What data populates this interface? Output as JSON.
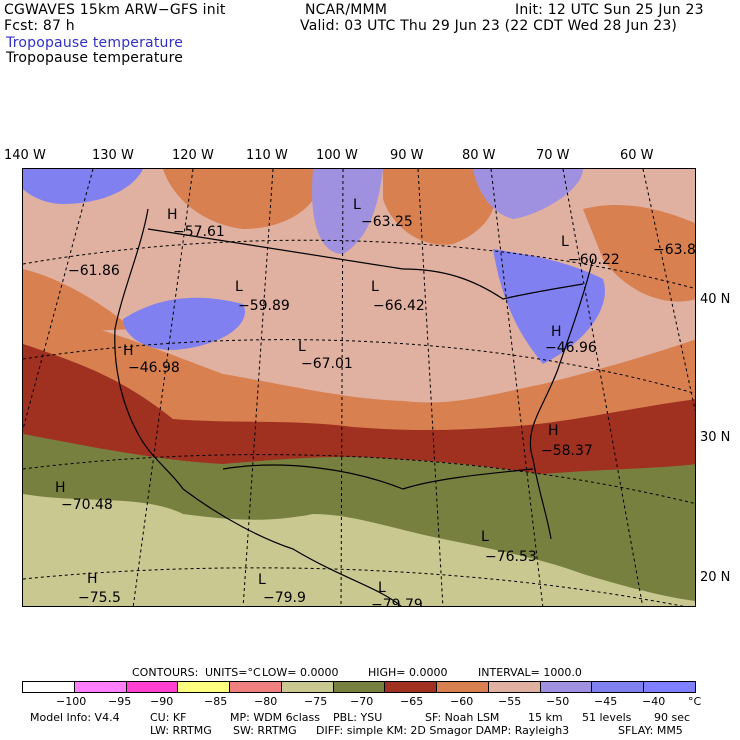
{
  "header": {
    "model": "CGWAVES 15km ARW−GFS init",
    "fcst": "Fcst:    87 h",
    "org": "NCAR/MMM",
    "init": "Init: 12 UTC Sun 25 Jun 23",
    "valid": "Valid: 03 UTC Thu 29 Jun 23 (22 CDT Wed 28 Jun 23)",
    "field_shaded": "Tropopause temperature",
    "field_contour": "Tropopause temperature"
  },
  "longitude_labels": [
    "140 W",
    "130 W",
    "120 W",
    "110 W",
    "100 W",
    "90 W",
    "80 W",
    "70 W",
    "60 W"
  ],
  "latitude_labels": [
    "40 N",
    "30 N",
    "20 N"
  ],
  "centers": [
    {
      "letter": "H",
      "value": "−57.61"
    },
    {
      "letter": "L",
      "value": "−63.25"
    },
    {
      "letter": "L",
      "value": "−60.22"
    },
    {
      "letter": "",
      "value": "−63.8"
    },
    {
      "letter": "",
      "value": "−61.86"
    },
    {
      "letter": "L",
      "value": "−59.89"
    },
    {
      "letter": "L",
      "value": "−66.42"
    },
    {
      "letter": "H",
      "value": "−46.98"
    },
    {
      "letter": "L",
      "value": "−67.01"
    },
    {
      "letter": "H",
      "value": "−46.96"
    },
    {
      "letter": "H",
      "value": "−58.37"
    },
    {
      "letter": "H",
      "value": "−70.48"
    },
    {
      "letter": "L",
      "value": "−76.53"
    },
    {
      "letter": "H",
      "value": "−75.5"
    },
    {
      "letter": "L",
      "value": "−79.9"
    },
    {
      "letter": "L",
      "value": "−79.79"
    }
  ],
  "contours_info": {
    "contours": "CONTOURS:",
    "units": "UNITS=°C",
    "low": "LOW=  0.0000",
    "high": "HIGH=  0.0000",
    "interval": "INTERVAL=    1000.0"
  },
  "legend": {
    "colors": [
      "#ffffff",
      "#ff80ff",
      "#ff40d0",
      "#ffff80",
      "#f08080",
      "#c8c890",
      "#788040",
      "#a03020",
      "#d88050",
      "#e0b0a0",
      "#a090e0",
      "#8080f0",
      "#8080ff"
    ],
    "ticks": [
      "−100",
      "−95",
      "−90",
      "−85",
      "−80",
      "−75",
      "−70",
      "−65",
      "−60",
      "−55",
      "−50",
      "−45",
      "−40"
    ],
    "unit": "°C"
  },
  "footer": {
    "model_info": "Model Info: V4.4",
    "cu": "CU: KF",
    "mp": "MP: WDM 6class",
    "pbl": "PBL: YSU",
    "sf": "SF: Noah LSM",
    "res": "15 km",
    "levels": "51 levels",
    "dt": "90 sec",
    "lw": "LW: RRTMG",
    "sw": "SW: RRTMG",
    "diff": "DIFF: simple KM: 2D Smagor DAMP: Rayleigh3",
    "sflay": "SFLAY: MM5"
  }
}
